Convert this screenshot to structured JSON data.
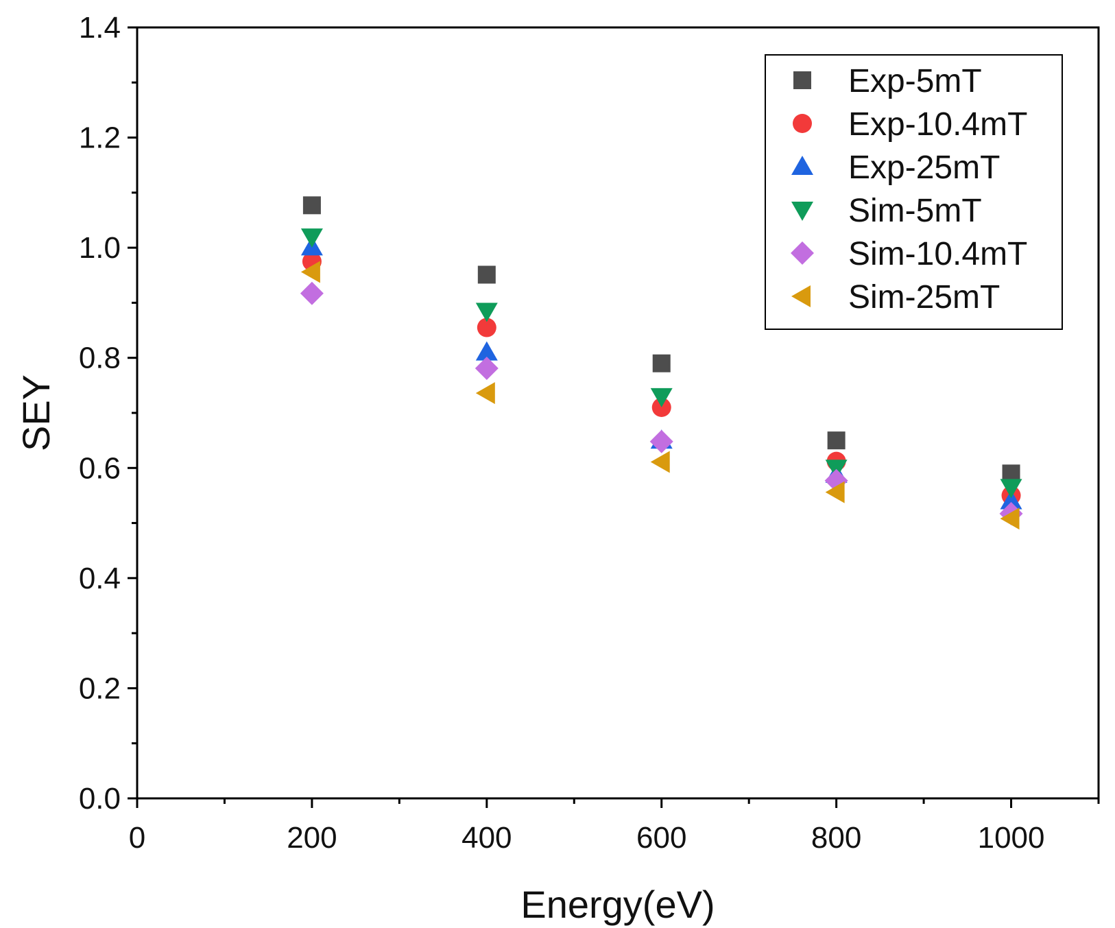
{
  "chart_data": {
    "type": "scatter",
    "title": "",
    "xlabel": "Energy(eV)",
    "ylabel": "SEY",
    "xlim": [
      0,
      1100
    ],
    "ylim": [
      0.0,
      1.4
    ],
    "x_ticks": [
      0,
      200,
      400,
      600,
      800,
      1000
    ],
    "x_tick_labels": [
      "0",
      "200",
      "400",
      "600",
      "800",
      "1000"
    ],
    "y_ticks": [
      0.0,
      0.2,
      0.4,
      0.6,
      0.8,
      1.0,
      1.2,
      1.4
    ],
    "y_tick_labels": [
      "0.0",
      "0.2",
      "0.4",
      "0.6",
      "0.8",
      "1.0",
      "1.2",
      "1.4"
    ],
    "grid": false,
    "legend_position": "top-right",
    "x": [
      200,
      400,
      600,
      800,
      1000
    ],
    "series": [
      {
        "name": "Exp-5mT",
        "marker": "square",
        "color": "#4d4d4d",
        "values": [
          1.077,
          0.951,
          0.79,
          0.65,
          0.59
        ]
      },
      {
        "name": "Exp-10.4mT",
        "marker": "circle",
        "color": "#f23a3a",
        "values": [
          0.975,
          0.855,
          0.71,
          0.612,
          0.55
        ]
      },
      {
        "name": "Exp-25mT",
        "marker": "triangle-up",
        "color": "#1f64e0",
        "values": [
          1.001,
          0.81,
          0.65,
          0.588,
          0.54
        ]
      },
      {
        "name": "Sim-5mT",
        "marker": "triangle-down",
        "color": "#0f9c5a",
        "values": [
          1.02,
          0.885,
          0.73,
          0.6,
          0.565
        ]
      },
      {
        "name": "Sim-10.4mT",
        "marker": "diamond",
        "color": "#c26ee0",
        "values": [
          0.917,
          0.781,
          0.648,
          0.577,
          0.517
        ]
      },
      {
        "name": "Sim-25mT",
        "marker": "triangle-left",
        "color": "#d99a0e",
        "values": [
          0.956,
          0.736,
          0.611,
          0.556,
          0.508
        ]
      }
    ]
  }
}
